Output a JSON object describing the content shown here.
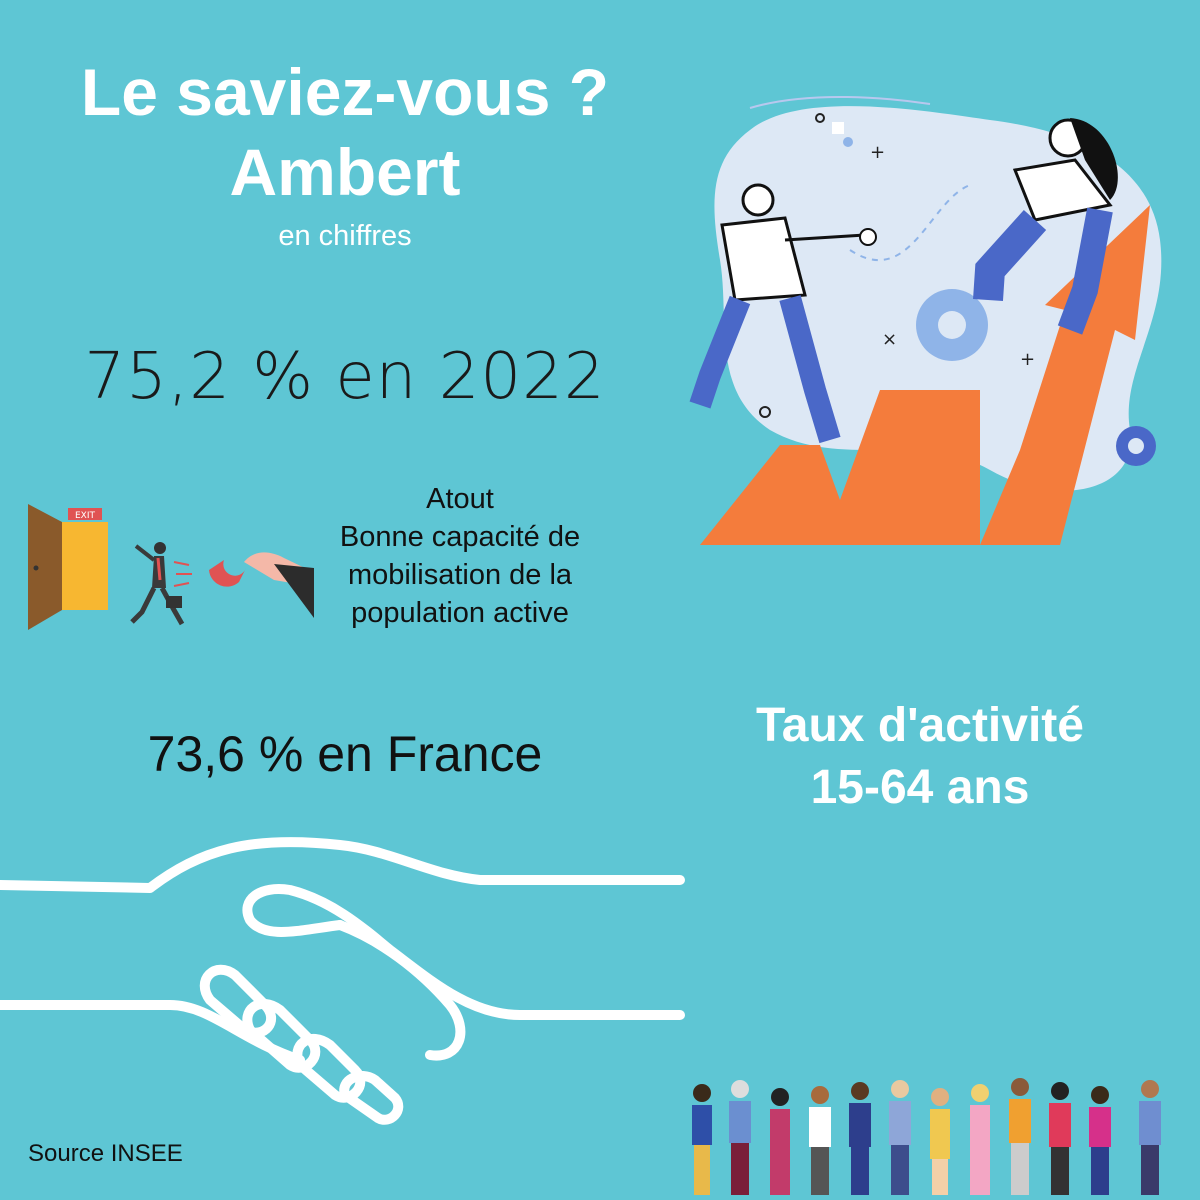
{
  "header": {
    "title_line1": "Le saviez-vous ?",
    "title_line2": "Ambert",
    "subtitle": "en chiffres"
  },
  "stats": {
    "local": "75,2 % en 2022",
    "national": "73,6 % en France"
  },
  "atout": {
    "heading": "Atout",
    "text": "Bonne capacité de mobilisation de la population active"
  },
  "indicator": {
    "line1": "Taux d'activité",
    "line2": "15-64 ans"
  },
  "exit_sign": "EXIT",
  "source": "Source INSEE",
  "colors": {
    "background": "#5ec6d4",
    "arrow": "#f47c3c",
    "blob": "#dde8f5",
    "gear": "#8fb4e8",
    "shirt_blue": "#4a68c8",
    "door": "#f7b731"
  },
  "icons": [
    "growth-arrow-illustration",
    "magnet-talent-illustration",
    "handshake-icon",
    "crowd-illustration"
  ]
}
